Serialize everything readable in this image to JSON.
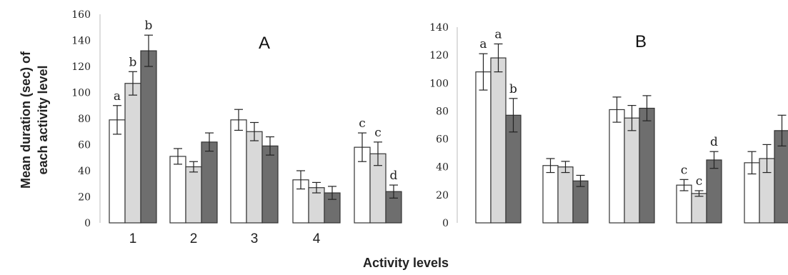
{
  "figure": {
    "ylabel_line1": "Mean duration (sec) of",
    "ylabel_line2": "each  activity level",
    "xlabel": "Activity levels"
  },
  "colors": {
    "series1": "#ffffff",
    "series2": "#d9d9d9",
    "series3": "#6e6e6e",
    "stroke": "#333333"
  },
  "chart_data": [
    {
      "type": "bar",
      "panel_label": "A",
      "categories": [
        "1",
        "2",
        "3",
        "4",
        ""
      ],
      "ylim": [
        0,
        160
      ],
      "yticks": [
        "0",
        "20",
        "40",
        "60",
        "80",
        "100",
        "120",
        "140",
        "160"
      ],
      "grid": false,
      "series": [
        {
          "values": [
            79,
            51,
            79,
            33,
            58
          ],
          "errors": [
            11,
            6,
            8,
            7,
            11
          ]
        },
        {
          "values": [
            107,
            43,
            70,
            27,
            53
          ],
          "errors": [
            9,
            4,
            7,
            4,
            9
          ]
        },
        {
          "values": [
            132,
            62,
            59,
            23,
            24
          ],
          "errors": [
            12,
            7,
            7,
            5,
            5
          ]
        }
      ],
      "annotations": [
        {
          "category": 0,
          "series": 0,
          "text": "a"
        },
        {
          "category": 0,
          "series": 1,
          "text": "b"
        },
        {
          "category": 0,
          "series": 2,
          "text": "b"
        },
        {
          "category": 4,
          "series": 0,
          "text": "c"
        },
        {
          "category": 4,
          "series": 1,
          "text": "c"
        },
        {
          "category": 4,
          "series": 2,
          "text": "d"
        }
      ]
    },
    {
      "type": "bar",
      "panel_label": "B",
      "categories": [
        "",
        "",
        "",
        "",
        ""
      ],
      "ylim": [
        0,
        140
      ],
      "yticks": [
        "0",
        "20",
        "40",
        "60",
        "80",
        "100",
        "120",
        "140"
      ],
      "grid": false,
      "series": [
        {
          "values": [
            108,
            41,
            81,
            27,
            43
          ],
          "errors": [
            13,
            5,
            9,
            4,
            8
          ]
        },
        {
          "values": [
            118,
            40,
            75,
            21,
            46
          ],
          "errors": [
            10,
            4,
            9,
            2,
            10
          ]
        },
        {
          "values": [
            77,
            30,
            82,
            45,
            66
          ],
          "errors": [
            12,
            4,
            9,
            6,
            11
          ]
        }
      ],
      "annotations": [
        {
          "category": 0,
          "series": 0,
          "text": "a"
        },
        {
          "category": 0,
          "series": 1,
          "text": "a"
        },
        {
          "category": 0,
          "series": 2,
          "text": "b"
        },
        {
          "category": 3,
          "series": 0,
          "text": "c"
        },
        {
          "category": 3,
          "series": 1,
          "text": "c"
        },
        {
          "category": 3,
          "series": 2,
          "text": "d"
        }
      ]
    }
  ]
}
